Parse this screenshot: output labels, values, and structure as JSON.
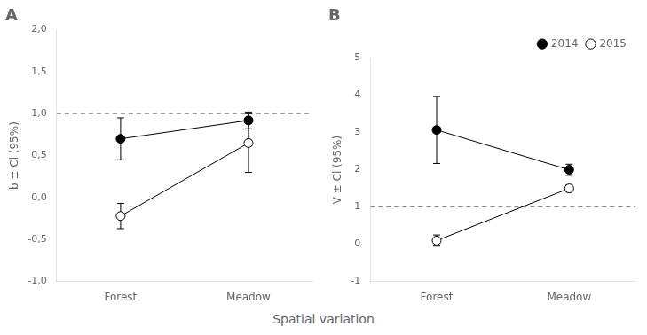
{
  "xlabel": "Spatial variation",
  "chart_data": [
    {
      "type": "line",
      "title": "A",
      "ylabel": "b ± Cl (95%)",
      "categories": [
        "Forest",
        "Meadow"
      ],
      "series": [
        {
          "name": "2014",
          "color": "#000000",
          "marker": "filled_circle",
          "values": [
            0.7,
            0.92
          ],
          "yerr": [
            0.25,
            0.1
          ]
        },
        {
          "name": "2015",
          "color": "#000000",
          "marker": "open_circle",
          "values": [
            -0.22,
            0.65
          ],
          "yerr": [
            0.15,
            0.35
          ]
        }
      ],
      "reference_line": 1.0,
      "ylim": [
        -1.0,
        2.0
      ],
      "yticks": [
        {
          "value": -1.0,
          "label": "-1,0"
        },
        {
          "value": -0.5,
          "label": "-0,5"
        },
        {
          "value": 0.0,
          "label": "0,0"
        },
        {
          "value": 0.5,
          "label": "0,5"
        },
        {
          "value": 1.0,
          "label": "1,0"
        },
        {
          "value": 1.5,
          "label": "1,5"
        },
        {
          "value": 2.0,
          "label": "2,0"
        }
      ],
      "grid": false
    },
    {
      "type": "line",
      "title": "B",
      "ylabel": "V ± Cl (95%)",
      "categories": [
        "Forest",
        "Meadow"
      ],
      "series": [
        {
          "name": "2014",
          "color": "#000000",
          "marker": "filled_circle",
          "values": [
            3.07,
            2.0
          ],
          "yerr": [
            0.9,
            0.15
          ]
        },
        {
          "name": "2015",
          "color": "#000000",
          "marker": "open_circle",
          "values": [
            0.1,
            1.5
          ],
          "yerr": [
            0.15,
            0.1
          ]
        }
      ],
      "reference_line": 1.0,
      "ylim": [
        -1.0,
        5.0
      ],
      "yticks": [
        -1,
        0,
        1,
        2,
        3,
        4,
        5
      ],
      "grid": false,
      "legend": "upper right"
    }
  ]
}
